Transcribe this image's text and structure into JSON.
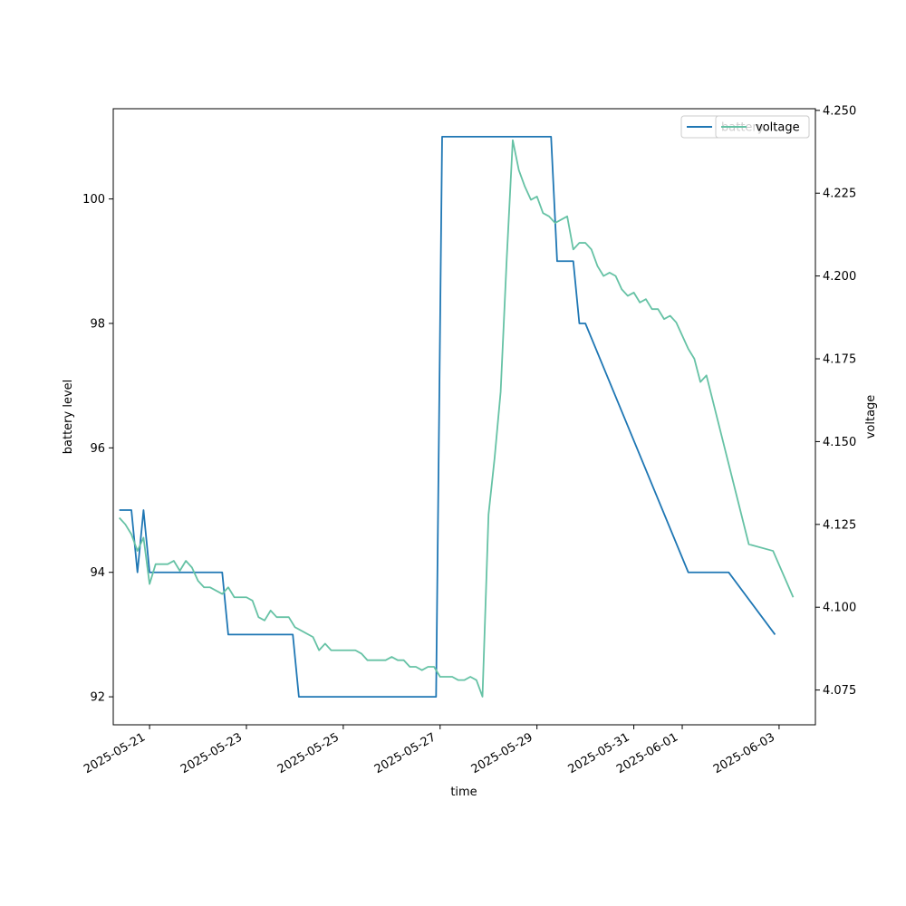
{
  "chart_data": {
    "type": "line",
    "xlabel": "time",
    "ylabel": "battery level",
    "y2label": "voltage",
    "xlim": [
      "2025-05-20T06:00",
      "2025-06-03T18:00"
    ],
    "ylim": [
      91.55,
      101.45
    ],
    "y2lim": [
      4.0645,
      4.2505
    ],
    "x_ticks": [
      "2025-05-21",
      "2025-05-23",
      "2025-05-25",
      "2025-05-27",
      "2025-05-29",
      "2025-05-31",
      "2025-06-01",
      "2025-06-03"
    ],
    "y_ticks": [
      "92",
      "94",
      "96",
      "98",
      "100"
    ],
    "y2_ticks": [
      "4.075",
      "4.100",
      "4.125",
      "4.150",
      "4.175",
      "4.200",
      "4.225",
      "4.250"
    ],
    "legends": [
      {
        "position": "upper right",
        "entries": [
          {
            "label": "battery",
            "color": "#1f77b4"
          }
        ]
      },
      {
        "position": "upper right",
        "entries": [
          {
            "label": "voltage",
            "color": "#66c2a5"
          }
        ]
      }
    ],
    "series": [
      {
        "name": "battery",
        "axis": "left",
        "color": "#1f77b4",
        "points": [
          [
            "2025-05-20T09:00",
            95
          ],
          [
            "2025-05-20T15:00",
            95
          ],
          [
            "2025-05-20T18:00",
            94
          ],
          [
            "2025-05-20T21:00",
            95
          ],
          [
            "2025-05-21T00:00",
            94
          ],
          [
            "2025-05-22T12:00",
            94
          ],
          [
            "2025-05-22T15:00",
            93
          ],
          [
            "2025-05-23T23:00",
            93
          ],
          [
            "2025-05-24T02:00",
            92
          ],
          [
            "2025-05-26T22:00",
            92
          ],
          [
            "2025-05-27T01:00",
            101
          ],
          [
            "2025-05-29T07:00",
            101
          ],
          [
            "2025-05-29T10:00",
            99
          ],
          [
            "2025-05-29T18:00",
            99
          ],
          [
            "2025-05-29T21:00",
            98
          ],
          [
            "2025-05-30T00:00",
            98
          ],
          [
            "2025-06-01T03:00",
            94
          ],
          [
            "2025-06-01T23:00",
            94
          ],
          [
            "2025-06-02T22:00",
            93
          ]
        ]
      },
      {
        "name": "voltage",
        "axis": "right",
        "color": "#66c2a5",
        "points": [
          [
            "2025-05-20T09:00",
            4.127
          ],
          [
            "2025-05-20T12:00",
            4.125
          ],
          [
            "2025-05-20T15:00",
            4.122
          ],
          [
            "2025-05-20T18:00",
            4.117
          ],
          [
            "2025-05-20T21:00",
            4.121
          ],
          [
            "2025-05-21T00:00",
            4.107
          ],
          [
            "2025-05-21T03:00",
            4.113
          ],
          [
            "2025-05-21T09:00",
            4.113
          ],
          [
            "2025-05-21T12:00",
            4.114
          ],
          [
            "2025-05-21T15:00",
            4.111
          ],
          [
            "2025-05-21T18:00",
            4.114
          ],
          [
            "2025-05-21T21:00",
            4.112
          ],
          [
            "2025-05-22T00:00",
            4.108
          ],
          [
            "2025-05-22T03:00",
            4.106
          ],
          [
            "2025-05-22T06:00",
            4.106
          ],
          [
            "2025-05-22T12:00",
            4.104
          ],
          [
            "2025-05-22T15:00",
            4.106
          ],
          [
            "2025-05-22T18:00",
            4.103
          ],
          [
            "2025-05-23T00:00",
            4.103
          ],
          [
            "2025-05-23T03:00",
            4.102
          ],
          [
            "2025-05-23T06:00",
            4.097
          ],
          [
            "2025-05-23T09:00",
            4.096
          ],
          [
            "2025-05-23T12:00",
            4.099
          ],
          [
            "2025-05-23T15:00",
            4.097
          ],
          [
            "2025-05-23T21:00",
            4.097
          ],
          [
            "2025-05-24T00:00",
            4.094
          ],
          [
            "2025-05-24T09:00",
            4.091
          ],
          [
            "2025-05-24T12:00",
            4.087
          ],
          [
            "2025-05-24T15:00",
            4.089
          ],
          [
            "2025-05-24T18:00",
            4.087
          ],
          [
            "2025-05-25T00:00",
            4.087
          ],
          [
            "2025-05-25T06:00",
            4.087
          ],
          [
            "2025-05-25T09:00",
            4.086
          ],
          [
            "2025-05-25T12:00",
            4.084
          ],
          [
            "2025-05-25T21:00",
            4.084
          ],
          [
            "2025-05-26T00:00",
            4.085
          ],
          [
            "2025-05-26T03:00",
            4.084
          ],
          [
            "2025-05-26T06:00",
            4.084
          ],
          [
            "2025-05-26T09:00",
            4.082
          ],
          [
            "2025-05-26T12:00",
            4.082
          ],
          [
            "2025-05-26T15:00",
            4.081
          ],
          [
            "2025-05-26T18:00",
            4.082
          ],
          [
            "2025-05-26T21:00",
            4.082
          ],
          [
            "2025-05-27T00:00",
            4.079
          ],
          [
            "2025-05-27T06:00",
            4.079
          ],
          [
            "2025-05-27T09:00",
            4.078
          ],
          [
            "2025-05-27T12:00",
            4.078
          ],
          [
            "2025-05-27T15:00",
            4.079
          ],
          [
            "2025-05-27T18:00",
            4.078
          ],
          [
            "2025-05-27T21:00",
            4.073
          ],
          [
            "2025-05-28T00:00",
            4.128
          ],
          [
            "2025-05-28T03:00",
            4.145
          ],
          [
            "2025-05-28T06:00",
            4.165
          ],
          [
            "2025-05-28T09:00",
            4.205
          ],
          [
            "2025-05-28T12:00",
            4.241
          ],
          [
            "2025-05-28T15:00",
            4.232
          ],
          [
            "2025-05-28T18:00",
            4.227
          ],
          [
            "2025-05-28T21:00",
            4.223
          ],
          [
            "2025-05-29T00:00",
            4.224
          ],
          [
            "2025-05-29T03:00",
            4.219
          ],
          [
            "2025-05-29T06:00",
            4.218
          ],
          [
            "2025-05-29T09:00",
            4.216
          ],
          [
            "2025-05-29T12:00",
            4.217
          ],
          [
            "2025-05-29T15:00",
            4.218
          ],
          [
            "2025-05-29T18:00",
            4.208
          ],
          [
            "2025-05-29T21:00",
            4.21
          ],
          [
            "2025-05-30T00:00",
            4.21
          ],
          [
            "2025-05-30T03:00",
            4.208
          ],
          [
            "2025-05-30T06:00",
            4.203
          ],
          [
            "2025-05-30T09:00",
            4.2
          ],
          [
            "2025-05-30T12:00",
            4.201
          ],
          [
            "2025-05-30T15:00",
            4.2
          ],
          [
            "2025-05-30T18:00",
            4.196
          ],
          [
            "2025-05-30T21:00",
            4.194
          ],
          [
            "2025-05-31T00:00",
            4.195
          ],
          [
            "2025-05-31T03:00",
            4.192
          ],
          [
            "2025-05-31T06:00",
            4.193
          ],
          [
            "2025-05-31T09:00",
            4.19
          ],
          [
            "2025-05-31T12:00",
            4.19
          ],
          [
            "2025-05-31T15:00",
            4.187
          ],
          [
            "2025-05-31T18:00",
            4.188
          ],
          [
            "2025-05-31T21:00",
            4.186
          ],
          [
            "2025-06-01T00:00",
            4.182
          ],
          [
            "2025-06-01T03:00",
            4.178
          ],
          [
            "2025-06-01T06:00",
            4.175
          ],
          [
            "2025-06-01T09:00",
            4.168
          ],
          [
            "2025-06-01T12:00",
            4.17
          ],
          [
            "2025-06-02T09:00",
            4.119
          ],
          [
            "2025-06-02T21:00",
            4.117
          ],
          [
            "2025-06-03T07:00",
            4.103
          ]
        ]
      }
    ]
  }
}
